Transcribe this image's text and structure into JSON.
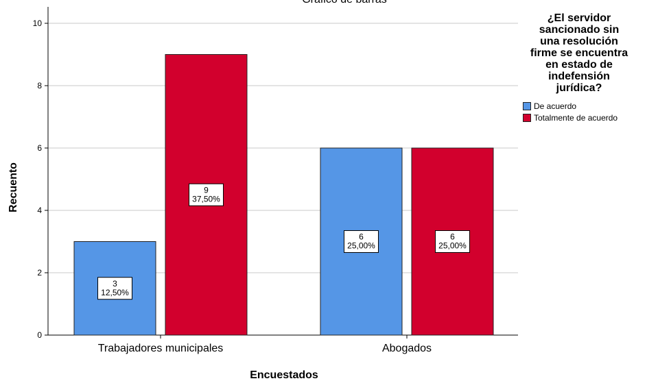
{
  "chart_data": {
    "type": "bar",
    "title": "Gráfico de barras",
    "xlabel": "Encuestados",
    "ylabel": "Recuento",
    "ylim": [
      0,
      10
    ],
    "yticks": [
      0,
      2,
      4,
      6,
      8,
      10
    ],
    "grid": true,
    "categories": [
      "Trabajadores municipales",
      "Abogados"
    ],
    "legend": {
      "title": "¿El servidor\nsancionado sin\nuna resolución\nfirme se encuentra\nen estado de\nindefensión\njurídica?",
      "placement": "right"
    },
    "series": [
      {
        "name": "De acuerdo",
        "color": "#5596e6",
        "values": [
          3,
          6
        ],
        "labels": [
          [
            "3",
            "12,50%"
          ],
          [
            "6",
            "25,00%"
          ]
        ]
      },
      {
        "name": "Totalmente de acuerdo",
        "color": "#d2002d",
        "values": [
          9,
          6
        ],
        "labels": [
          [
            "9",
            "37,50%"
          ],
          [
            "6",
            "25,00%"
          ]
        ]
      }
    ]
  }
}
